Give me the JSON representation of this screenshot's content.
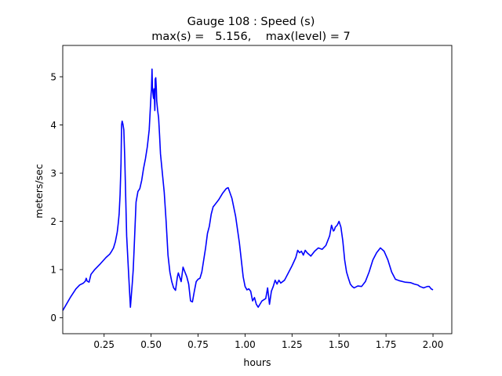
{
  "chart_data": {
    "type": "line",
    "title_line1": "Gauge 108 : Speed (s)",
    "title_line2": "max(s) =   5.156,    max(level) = 7",
    "xlabel": "hours",
    "ylabel": "meters/sec",
    "xlim": [
      0.03,
      2.1
    ],
    "ylim": [
      -0.33,
      5.65
    ],
    "xticks": [
      0.25,
      0.5,
      0.75,
      1.0,
      1.25,
      1.5,
      1.75,
      2.0
    ],
    "xtick_labels": [
      "0.25",
      "0.50",
      "0.75",
      "1.00",
      "1.25",
      "1.50",
      "1.75",
      "2.00"
    ],
    "yticks": [
      0,
      1,
      2,
      3,
      4,
      5
    ],
    "ytick_labels": [
      "0",
      "1",
      "2",
      "3",
      "4",
      "5"
    ],
    "grid": false,
    "series": [
      {
        "color": "#0000ff",
        "x": [
          0.03,
          0.07,
          0.1,
          0.12,
          0.14,
          0.15,
          0.155,
          0.16,
          0.17,
          0.18,
          0.2,
          0.23,
          0.26,
          0.28,
          0.29,
          0.3,
          0.31,
          0.32,
          0.325,
          0.33,
          0.335,
          0.34,
          0.343,
          0.346,
          0.35,
          0.355,
          0.36,
          0.365,
          0.37,
          0.38,
          0.39,
          0.4,
          0.405,
          0.41,
          0.42,
          0.43,
          0.44,
          0.45,
          0.46,
          0.47,
          0.48,
          0.49,
          0.5,
          0.502,
          0.505,
          0.507,
          0.51,
          0.513,
          0.516,
          0.52,
          0.522,
          0.525,
          0.528,
          0.53,
          0.535,
          0.54,
          0.545,
          0.55,
          0.56,
          0.57,
          0.58,
          0.585,
          0.59,
          0.6,
          0.61,
          0.62,
          0.63,
          0.64,
          0.645,
          0.65,
          0.66,
          0.67,
          0.68,
          0.685,
          0.69,
          0.7,
          0.71,
          0.72,
          0.73,
          0.74,
          0.75,
          0.76,
          0.77,
          0.78,
          0.79,
          0.8,
          0.81,
          0.82,
          0.83,
          0.84,
          0.86,
          0.88,
          0.9,
          0.91,
          0.93,
          0.95,
          0.97,
          0.98,
          0.99,
          1.0,
          1.01,
          1.02,
          1.03,
          1.04,
          1.05,
          1.06,
          1.07,
          1.09,
          1.11,
          1.12,
          1.125,
          1.13,
          1.14,
          1.15,
          1.16,
          1.17,
          1.18,
          1.19,
          1.21,
          1.23,
          1.25,
          1.27,
          1.28,
          1.29,
          1.3,
          1.31,
          1.32,
          1.33,
          1.35,
          1.37,
          1.39,
          1.41,
          1.43,
          1.45,
          1.46,
          1.47,
          1.475,
          1.48,
          1.49,
          1.5,
          1.51,
          1.52,
          1.53,
          1.54,
          1.55,
          1.56,
          1.57,
          1.58,
          1.6,
          1.62,
          1.64,
          1.66,
          1.68,
          1.7,
          1.72,
          1.74,
          1.76,
          1.78,
          1.8,
          1.82,
          1.85,
          1.88,
          1.9,
          1.92,
          1.93,
          1.95,
          1.97,
          1.98,
          1.99,
          2.0
        ],
        "y": [
          0.15,
          0.42,
          0.6,
          0.68,
          0.72,
          0.76,
          0.82,
          0.76,
          0.74,
          0.9,
          1.0,
          1.12,
          1.25,
          1.32,
          1.38,
          1.45,
          1.58,
          1.78,
          1.95,
          2.15,
          2.55,
          3.2,
          4.0,
          4.08,
          4.02,
          3.9,
          3.3,
          2.5,
          1.7,
          0.95,
          0.22,
          0.72,
          1.0,
          1.45,
          2.4,
          2.62,
          2.68,
          2.85,
          3.1,
          3.3,
          3.55,
          3.9,
          4.65,
          4.73,
          5.16,
          4.8,
          4.65,
          4.55,
          4.75,
          4.3,
          4.95,
          4.98,
          4.75,
          4.5,
          4.3,
          4.15,
          3.8,
          3.4,
          3.0,
          2.6,
          2.0,
          1.65,
          1.3,
          0.95,
          0.75,
          0.62,
          0.57,
          0.85,
          0.93,
          0.87,
          0.75,
          1.05,
          0.95,
          0.9,
          0.85,
          0.7,
          0.35,
          0.33,
          0.55,
          0.75,
          0.8,
          0.82,
          0.95,
          1.2,
          1.45,
          1.75,
          1.9,
          2.15,
          2.3,
          2.35,
          2.45,
          2.58,
          2.68,
          2.7,
          2.48,
          2.1,
          1.55,
          1.2,
          0.85,
          0.65,
          0.58,
          0.6,
          0.55,
          0.35,
          0.42,
          0.28,
          0.22,
          0.35,
          0.4,
          0.62,
          0.45,
          0.28,
          0.55,
          0.65,
          0.78,
          0.7,
          0.78,
          0.72,
          0.78,
          0.93,
          1.08,
          1.25,
          1.4,
          1.35,
          1.38,
          1.3,
          1.4,
          1.35,
          1.28,
          1.38,
          1.45,
          1.42,
          1.5,
          1.7,
          1.92,
          1.8,
          1.82,
          1.88,
          1.92,
          2.0,
          1.88,
          1.6,
          1.2,
          0.95,
          0.82,
          0.7,
          0.65,
          0.62,
          0.66,
          0.65,
          0.75,
          0.95,
          1.2,
          1.35,
          1.45,
          1.38,
          1.2,
          0.95,
          0.8,
          0.77,
          0.74,
          0.73,
          0.7,
          0.68,
          0.65,
          0.62,
          0.65,
          0.65,
          0.6,
          0.58
        ]
      }
    ]
  }
}
